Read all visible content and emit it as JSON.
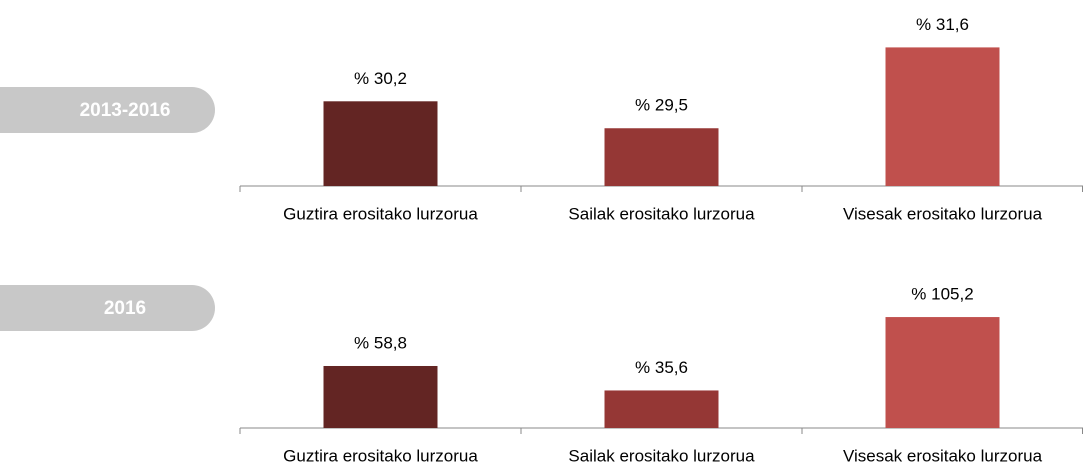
{
  "chart_data": [
    {
      "type": "bar",
      "label": "2013-2016",
      "categories": [
        "Guztira erositako lurzorua",
        "Sailak erositako lurzorua",
        "Visesak erositako lurzorua"
      ],
      "values": [
        30.2,
        29.5,
        31.6
      ],
      "value_labels": [
        "% 30,2",
        "% 29,5",
        "% 31,6"
      ],
      "colors": [
        "#632523",
        "#953735",
        "#c0504d"
      ],
      "ylim": [
        28,
        32
      ]
    },
    {
      "type": "bar",
      "label": "2016",
      "categories": [
        "Guztira erositako lurzorua",
        "Sailak erositako lurzorua",
        "Visesak erositako lurzorua"
      ],
      "values": [
        58.8,
        35.6,
        105.2
      ],
      "value_labels": [
        "% 58,8",
        "% 35,6",
        "% 105,2"
      ],
      "colors": [
        "#632523",
        "#953735",
        "#c0504d"
      ],
      "ylim": [
        0,
        110
      ]
    }
  ]
}
